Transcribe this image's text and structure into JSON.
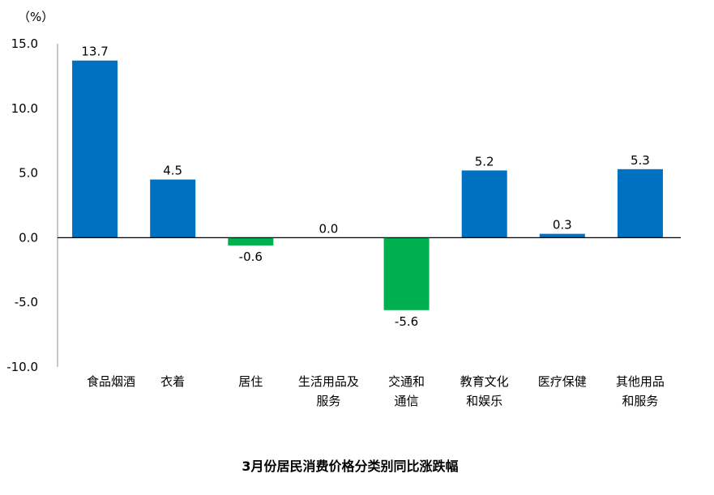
{
  "chart_data": {
    "type": "bar",
    "title": "3月份居民消费价格分类别同比涨跌幅",
    "ylabel": "（%）",
    "xlabel": "",
    "ylim": [
      -10,
      15
    ],
    "yticks": [
      15,
      10,
      5,
      0,
      -5,
      -10
    ],
    "ytick_labels": [
      "15.0",
      "10.0",
      "5.0",
      "0.0",
      "-5.0",
      "-10.0"
    ],
    "grid": false,
    "categories": [
      "食品烟酒",
      "衣着",
      "居住",
      "生活用品及服务",
      "交通和通信",
      "教育文化和娱乐",
      "医疗保健",
      "其他用品和服务"
    ],
    "label_lines": [
      [
        "食品烟酒"
      ],
      [
        "衣着"
      ],
      [
        "居住"
      ],
      [
        "生活用品及",
        "服务"
      ],
      [
        "交通和",
        "通信"
      ],
      [
        "教育文化",
        "和娱乐"
      ],
      [
        "医疗保健"
      ],
      [
        "其他用品",
        "和服务"
      ]
    ],
    "values": [
      13.7,
      4.5,
      -0.6,
      0.0,
      -5.6,
      5.2,
      0.3,
      5.3
    ],
    "data_labels": [
      "13.7",
      "4.5",
      "-0.6",
      "0.0",
      "-5.6",
      "5.2",
      "0.3",
      "5.3"
    ],
    "colors": {
      "positive": "#0070C0",
      "negative": "#00B050"
    }
  }
}
